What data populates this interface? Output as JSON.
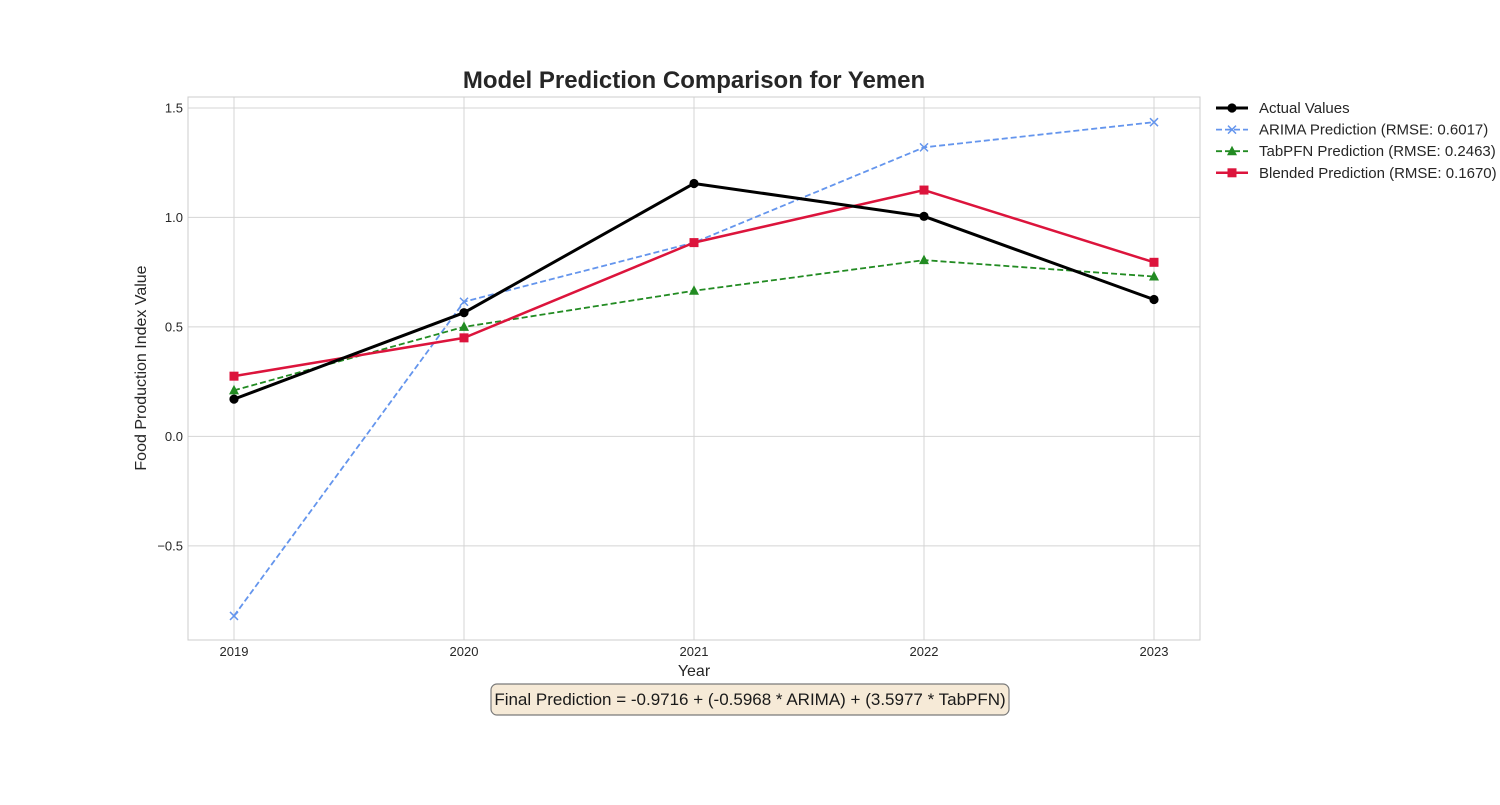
{
  "chart_data": {
    "type": "line",
    "title": "Model Prediction Comparison for Yemen",
    "xlabel": "Year",
    "ylabel": "Food Production Index Value",
    "x": [
      2019,
      2020,
      2021,
      2022,
      2023
    ],
    "xticks": [
      "2019",
      "2020",
      "2021",
      "2022",
      "2023"
    ],
    "yticks": [
      1.5,
      1.0,
      0.5,
      0.0,
      -0.5
    ],
    "ytick_labels": [
      "1.5",
      "1.0",
      "0.5",
      "0.0",
      "−0.5"
    ],
    "xlim": [
      2018.8,
      2023.2
    ],
    "ylim": [
      -0.93,
      1.55
    ],
    "grid": true,
    "legend_position": "outside-top-right",
    "series": [
      {
        "name": "Actual Values",
        "values": [
          0.17,
          0.565,
          1.155,
          1.005,
          0.625
        ],
        "color": "#000000",
        "line_style": "solid",
        "marker": "circle"
      },
      {
        "name": "ARIMA Prediction (RMSE: 0.6017)",
        "values": [
          -0.82,
          0.615,
          0.885,
          1.32,
          1.435
        ],
        "color": "#6495ED",
        "line_style": "dashed",
        "marker": "x"
      },
      {
        "name": "TabPFN Prediction (RMSE: 0.2463)",
        "values": [
          0.21,
          0.5,
          0.665,
          0.805,
          0.73
        ],
        "color": "#228B22",
        "line_style": "dashed",
        "marker": "triangle"
      },
      {
        "name": "Blended Prediction (RMSE: 0.1670)",
        "values": [
          0.275,
          0.45,
          0.885,
          1.125,
          0.795
        ],
        "color": "#DC143C",
        "line_style": "solid",
        "marker": "square"
      }
    ],
    "annotation": "Final Prediction = -0.9716 + (-0.5968 * ARIMA) + (3.5977 * TabPFN)"
  }
}
